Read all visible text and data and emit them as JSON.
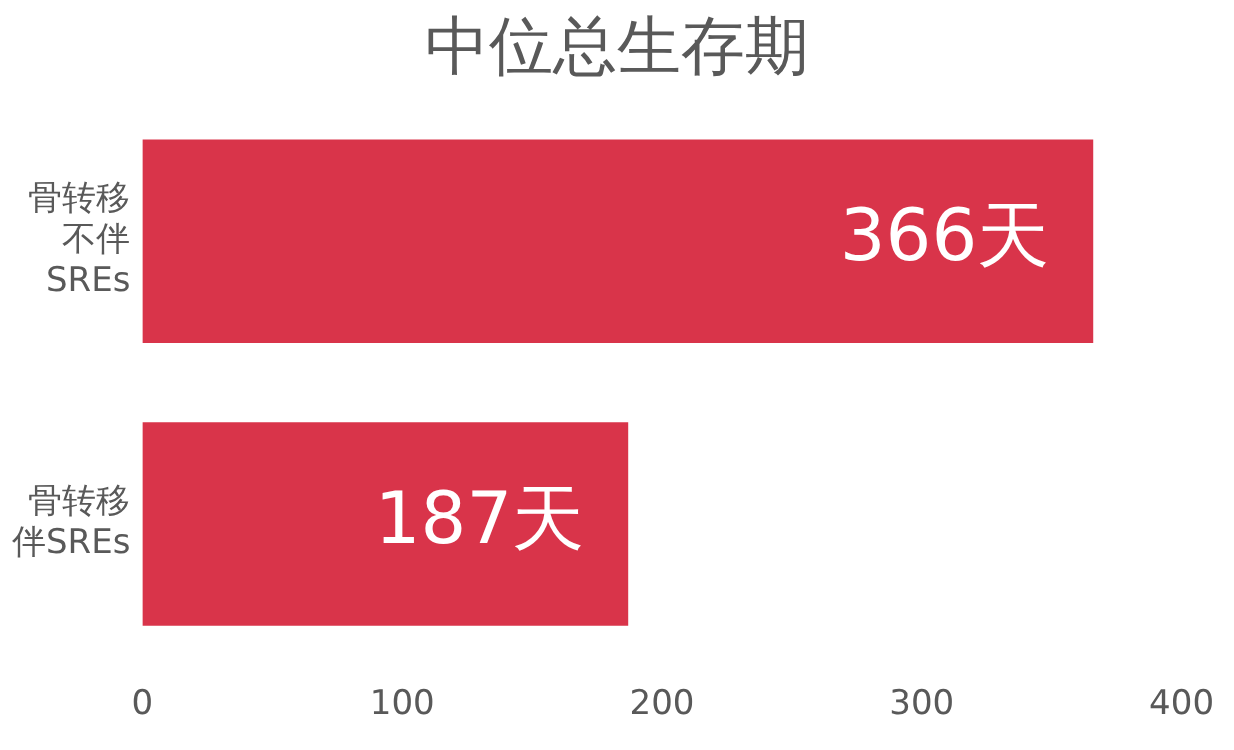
{
  "chart_data": {
    "type": "bar",
    "orientation": "horizontal",
    "title": "中位总生存期",
    "categories": [
      "骨转移不伴SREs",
      "骨转移伴SREs"
    ],
    "values": [
      366,
      187
    ],
    "value_labels": [
      "366天",
      "187天"
    ],
    "color": "#d9344a",
    "xlim": [
      0,
      400
    ],
    "xticks": [
      0,
      100,
      200,
      300,
      400
    ],
    "grid": false,
    "legend": false
  }
}
